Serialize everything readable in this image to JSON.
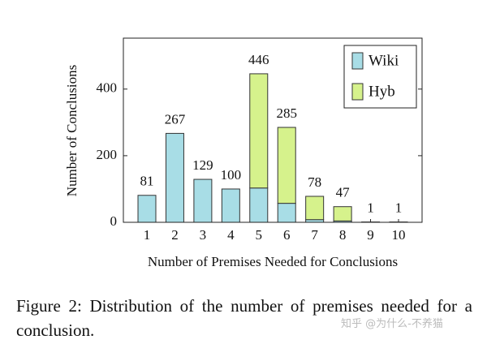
{
  "chart_data": {
    "type": "stacked-bar",
    "xlabel": "Number of Premises Needed for Conclusions",
    "ylabel": "Number of Conclusions",
    "categories": [
      "1",
      "2",
      "3",
      "4",
      "5",
      "6",
      "7",
      "8",
      "9",
      "10"
    ],
    "series": [
      {
        "name": "Wiki",
        "color": "#a8dde6",
        "values": [
          81,
          267,
          129,
          100,
          103,
          57,
          8,
          4,
          1,
          1
        ]
      },
      {
        "name": "Hyb",
        "color": "#d6f28c",
        "values": [
          0,
          0,
          0,
          0,
          343,
          228,
          70,
          43,
          0,
          0
        ]
      }
    ],
    "total_labels": [
      "81",
      "267",
      "129",
      "100",
      "446",
      "285",
      "78",
      "47",
      "1",
      "1"
    ],
    "ylim": [
      0,
      553
    ],
    "yticks": [
      0,
      200,
      400
    ],
    "legend": "top-right"
  },
  "caption": "Figure 2:  Distribution of the number of premises needed for a conclusion.",
  "watermark": "知乎 @为什么-不养猫"
}
